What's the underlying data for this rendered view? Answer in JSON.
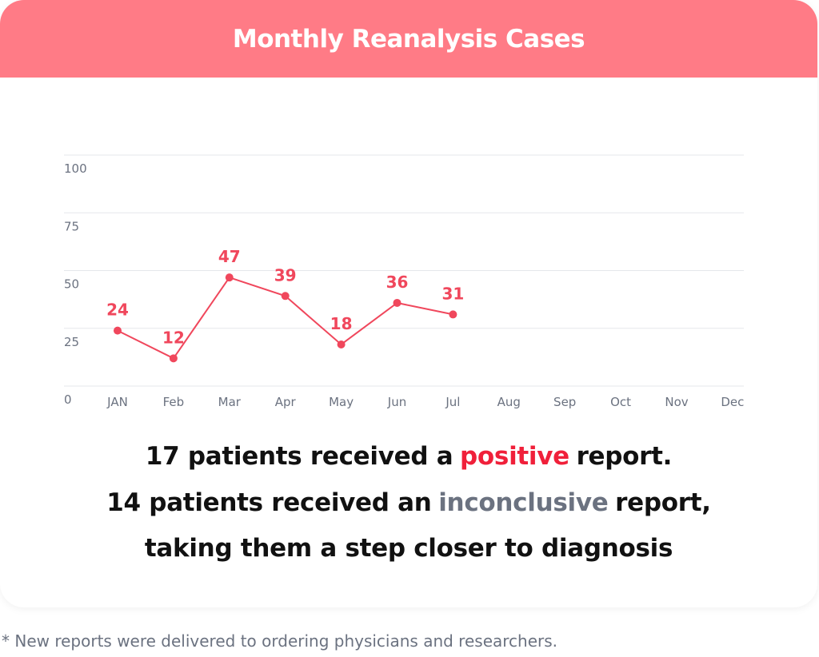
{
  "chart_data": {
    "type": "line",
    "title": "Monthly Reanalysis Cases",
    "categories": [
      "JAN",
      "Feb",
      "Mar",
      "Apr",
      "May",
      "Jun",
      "Jul",
      "Aug",
      "Sep",
      "Oct",
      "Nov",
      "Dec"
    ],
    "values": [
      24,
      12,
      47,
      39,
      18,
      36,
      31,
      null,
      null,
      null,
      null,
      null
    ],
    "color": "#f0475c",
    "ylim": [
      0,
      100
    ],
    "yticks": [
      0,
      25,
      50,
      75,
      100
    ],
    "grid": true,
    "summary": [
      [
        {
          "text": "17 patients received a"
        },
        {
          "text": "positive",
          "color": "#f0203a"
        },
        {
          "text": "report."
        }
      ],
      [
        {
          "text": "14 patients received an"
        },
        {
          "text": "inconclusive",
          "color": "#6b7280"
        },
        {
          "text": "report,"
        }
      ],
      [
        {
          "text": "taking them a step closer to diagnosis"
        }
      ]
    ],
    "footnote": "* New reports were delivered to ordering physicians and researchers."
  }
}
